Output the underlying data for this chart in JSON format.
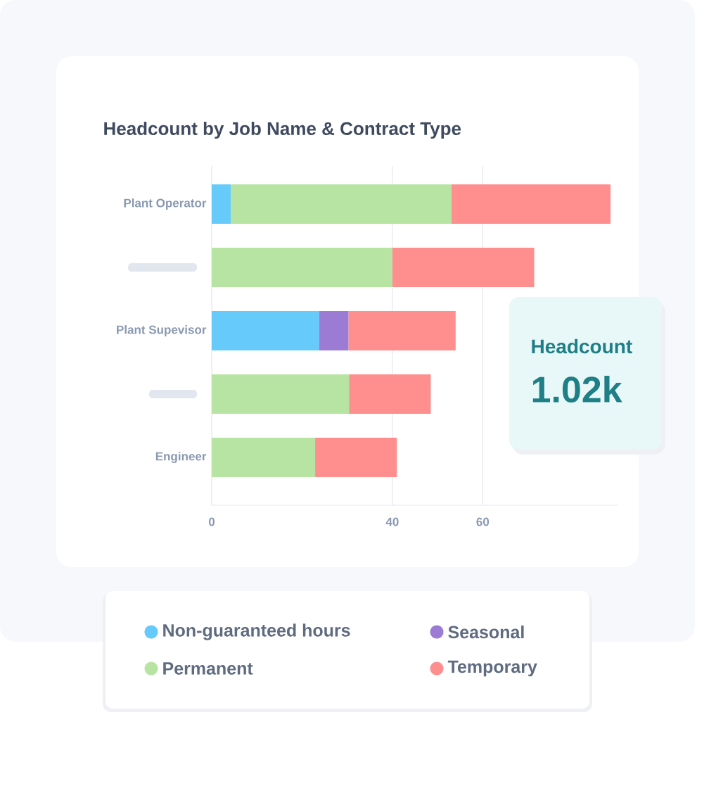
{
  "chart_data": {
    "type": "bar",
    "orientation": "horizontal",
    "stacked": true,
    "title": "Headcount by Job Name & Contract Type",
    "categories": [
      "Plant Operator",
      null,
      "Plant Supevisor",
      null,
      "Engineer"
    ],
    "series": [
      {
        "name": "Non-guaranteed hours",
        "color": "#66cafa",
        "values": [
          4.2,
          null,
          23.8,
          null,
          null
        ]
      },
      {
        "name": "Seasonal",
        "color": "#9b7bd4",
        "values": [
          null,
          null,
          6.5,
          null,
          null
        ]
      },
      {
        "name": "Permanent",
        "color": "#b8e4a3",
        "values": [
          48.9,
          40,
          null,
          30.4,
          22.9
        ]
      },
      {
        "name": "Temporary",
        "color": "#ff8e8e",
        "values": [
          35.2,
          31.4,
          23.7,
          18.1,
          18.1
        ]
      }
    ],
    "xlim": [
      0,
      90
    ],
    "xticks": [
      0,
      40,
      60
    ],
    "grid": "x",
    "legend": "bottom",
    "annotations": [
      "Headcount",
      "1.02k"
    ]
  }
}
